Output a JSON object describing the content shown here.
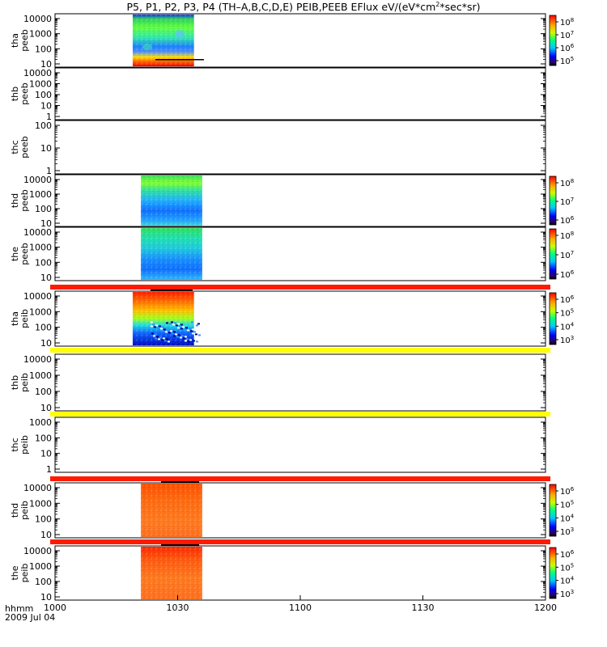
{
  "title": {
    "main": "P5, P1, P2, P3, P4 (TH–A,B,C,D,E) PEIB,PEEB EFlux eV/(eV*cm",
    "sup": "2",
    "tail": "*sec*sr)"
  },
  "footer": {
    "line1": "hhmm",
    "line2": "2009 Jul 04"
  },
  "colors": {
    "bar_red": "#ff1a00",
    "bar_yellow": "#ffff00",
    "frame": "#000000"
  },
  "chart_data": {
    "type": "heatmap",
    "x_axis": {
      "ticks": [
        "1000",
        "1030",
        "1100",
        "1130",
        "1200"
      ],
      "range": [
        "10:00",
        "12:00"
      ]
    },
    "panels": [
      {
        "label1": "tha",
        "label2": "peeb",
        "ticks": [
          "10000",
          "1000",
          "100",
          "10"
        ],
        "colorbar": {
          "sup": [
            "8",
            "7",
            "6",
            "5"
          ]
        },
        "data_extent": [
          "10:19",
          "10:34"
        ],
        "style": "peeb-a"
      },
      {
        "label1": "thb",
        "label2": "peeb",
        "ticks": [
          "10000",
          "1000",
          "100",
          "10",
          "1"
        ],
        "colorbar": null,
        "data_extent": null,
        "style": "empty"
      },
      {
        "label1": "thc",
        "label2": "peeb",
        "ticks": [
          "100",
          "10",
          "1"
        ],
        "colorbar": null,
        "data_extent": null,
        "style": "empty"
      },
      {
        "label1": "thd",
        "label2": "peeb",
        "ticks": [
          "10000",
          "1000",
          "100",
          "10"
        ],
        "colorbar": {
          "sup": [
            "8",
            "7",
            "6"
          ]
        },
        "data_extent": [
          "10:21",
          "10:36"
        ],
        "style": "peeb-d"
      },
      {
        "label1": "the",
        "label2": "peeb",
        "ticks": [
          "10000",
          "1000",
          "100",
          "10"
        ],
        "colorbar": {
          "sup": [
            "8",
            "7",
            "6"
          ]
        },
        "data_extent": [
          "10:21",
          "10:36"
        ],
        "style": "peeb-e"
      },
      {
        "label1": "tha",
        "label2": "peib",
        "ticks": [
          "10000",
          "1000",
          "100",
          "10"
        ],
        "colorbar": {
          "sup": [
            "6",
            "5",
            "4",
            "3"
          ]
        },
        "data_extent": [
          "10:19",
          "10:34"
        ],
        "style": "peib-a",
        "bar_above": "red"
      },
      {
        "label1": "thb",
        "label2": "peib",
        "ticks": [
          "10000",
          "1000",
          "100",
          "10"
        ],
        "colorbar": null,
        "data_extent": null,
        "style": "empty",
        "bar_above": "yellow"
      },
      {
        "label1": "thc",
        "label2": "peib",
        "ticks": [
          "1000",
          "100",
          "10",
          "1"
        ],
        "colorbar": null,
        "data_extent": null,
        "style": "empty",
        "bar_above": "yellow"
      },
      {
        "label1": "thd",
        "label2": "peib",
        "ticks": [
          "10000",
          "1000",
          "100",
          "10"
        ],
        "colorbar": {
          "sup": [
            "6",
            "5",
            "4",
            "3"
          ]
        },
        "data_extent": [
          "10:21",
          "10:36"
        ],
        "style": "peib-d",
        "bar_above": "red"
      },
      {
        "label1": "the",
        "label2": "peib",
        "ticks": [
          "10000",
          "1000",
          "100",
          "10"
        ],
        "colorbar": {
          "sup": [
            "6",
            "5",
            "4",
            "3"
          ]
        },
        "data_extent": [
          "10:21",
          "10:36"
        ],
        "style": "peib-e",
        "bar_above": "red"
      }
    ]
  }
}
